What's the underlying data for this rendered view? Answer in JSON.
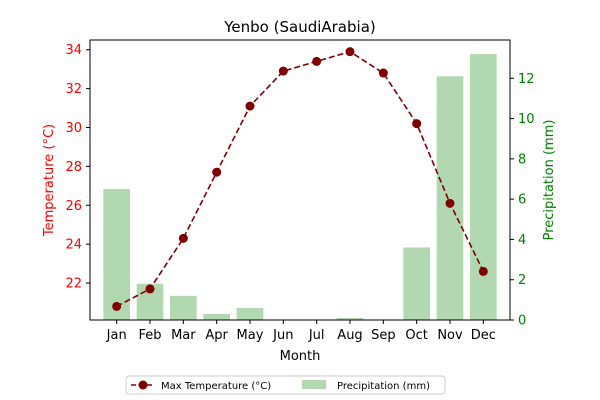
{
  "chart_data": {
    "type": "bar+line",
    "title": "Yenbo (SaudiArabia)",
    "xlabel": "Month",
    "categories": [
      "Jan",
      "Feb",
      "Mar",
      "Apr",
      "May",
      "Jun",
      "Jul",
      "Aug",
      "Sep",
      "Oct",
      "Nov",
      "Dec"
    ],
    "series": [
      {
        "name": "Max Temperature (°C)",
        "type": "line",
        "axis": "left",
        "color": "#800000",
        "values": [
          20.8,
          21.7,
          24.3,
          27.7,
          31.1,
          32.9,
          33.4,
          33.9,
          32.8,
          30.2,
          26.1,
          22.6
        ]
      },
      {
        "name": "Precipitation (mm)",
        "type": "bar",
        "axis": "right",
        "color": "#b1d8b1",
        "values": [
          6.5,
          1.8,
          1.2,
          0.3,
          0.6,
          0.0,
          0.0,
          0.1,
          0.0,
          3.6,
          12.1,
          13.2
        ]
      }
    ],
    "y_left": {
      "label": "Temperature (°C)",
      "color": "#ff0000",
      "lim": [
        20.1,
        34.5
      ],
      "ticks": [
        22,
        24,
        26,
        28,
        30,
        32,
        34
      ]
    },
    "y_right": {
      "label": "Precipitation (mm)",
      "color": "#008000",
      "lim": [
        0,
        13.9
      ],
      "ticks": [
        0,
        2,
        4,
        6,
        8,
        10,
        12
      ]
    },
    "grid": false,
    "legend_position": "bottom-center, below plot, 2 columns"
  }
}
